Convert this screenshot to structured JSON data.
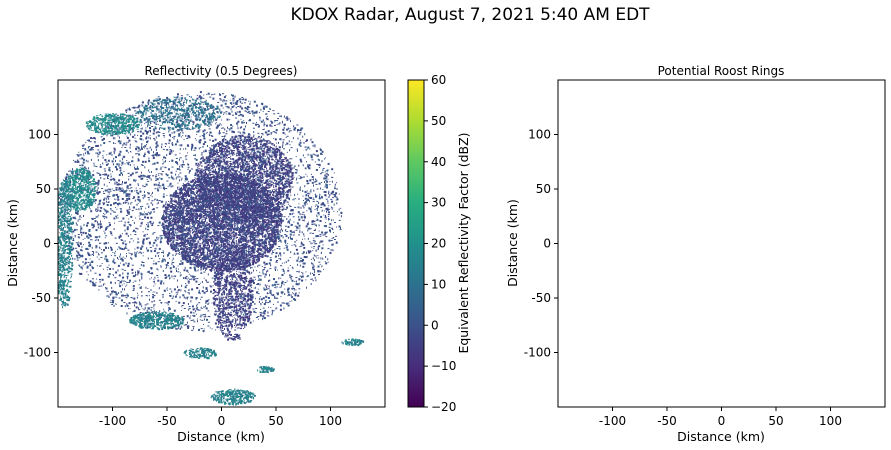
{
  "figure": {
    "suptitle": "KDOX Radar, August 7, 2021 5:40 AM EDT"
  },
  "chart_data": [
    {
      "type": "heatmap",
      "title": "Reflectivity (0.5 Degrees)",
      "xlabel": "Distance (km)",
      "ylabel": "Distance (km)",
      "xlim": [
        -150,
        150
      ],
      "ylim": [
        -150,
        150
      ],
      "xticks": [
        "-100",
        "-50",
        "0",
        "50",
        "100"
      ],
      "yticks": [
        "100",
        "50",
        "0",
        "-50",
        "-100"
      ],
      "colorbar": {
        "label": "Equivalent Reflectivity Factor (dBZ)",
        "range": [
          -20,
          60
        ],
        "ticks": [
          "60",
          "50",
          "40",
          "30",
          "20",
          "10",
          "0",
          "−10",
          "−20"
        ],
        "colormap": "viridis"
      },
      "echo_regions": [
        {
          "x": 0,
          "y": 20,
          "rx": 55,
          "ry": 45,
          "dbz": -5,
          "density": 0.7
        },
        {
          "x": 20,
          "y": 60,
          "rx": 45,
          "ry": 40,
          "dbz": -5,
          "density": 0.45
        },
        {
          "x": -20,
          "y": 30,
          "rx": 130,
          "ry": 110,
          "dbz": 0,
          "density": 0.12
        },
        {
          "x": 10,
          "y": -45,
          "rx": 18,
          "ry": 45,
          "dbz": -5,
          "density": 0.35
        },
        {
          "x": -60,
          "y": -70,
          "rx": 25,
          "ry": 8,
          "dbz": 15,
          "density": 0.85
        },
        {
          "x": -130,
          "y": 50,
          "rx": 14,
          "ry": 20,
          "dbz": 18,
          "density": 0.7
        },
        {
          "x": -100,
          "y": 110,
          "rx": 25,
          "ry": 10,
          "dbz": 18,
          "density": 0.65
        },
        {
          "x": -145,
          "y": 0,
          "rx": 8,
          "ry": 60,
          "dbz": 15,
          "density": 0.5
        },
        {
          "x": 10,
          "y": -140,
          "rx": 20,
          "ry": 7,
          "dbz": 15,
          "density": 0.75
        },
        {
          "x": 120,
          "y": -90,
          "rx": 10,
          "ry": 3,
          "dbz": 15,
          "density": 0.9
        },
        {
          "x": 40,
          "y": -115,
          "rx": 8,
          "ry": 3,
          "dbz": 15,
          "density": 0.9
        },
        {
          "x": -20,
          "y": -100,
          "rx": 15,
          "ry": 5,
          "dbz": 15,
          "density": 0.7
        },
        {
          "x": -40,
          "y": 120,
          "rx": 40,
          "ry": 15,
          "dbz": 10,
          "density": 0.3
        }
      ]
    },
    {
      "type": "heatmap",
      "title": "Potential Roost Rings",
      "xlabel": "Distance (km)",
      "ylabel": "Distance (km)",
      "xlim": [
        -150,
        150
      ],
      "ylim": [
        -150,
        150
      ],
      "xticks": [
        "-100",
        "-50",
        "0",
        "50",
        "100"
      ],
      "yticks": [
        "100",
        "50",
        "0",
        "-50",
        "-100"
      ],
      "echo_regions": []
    }
  ]
}
